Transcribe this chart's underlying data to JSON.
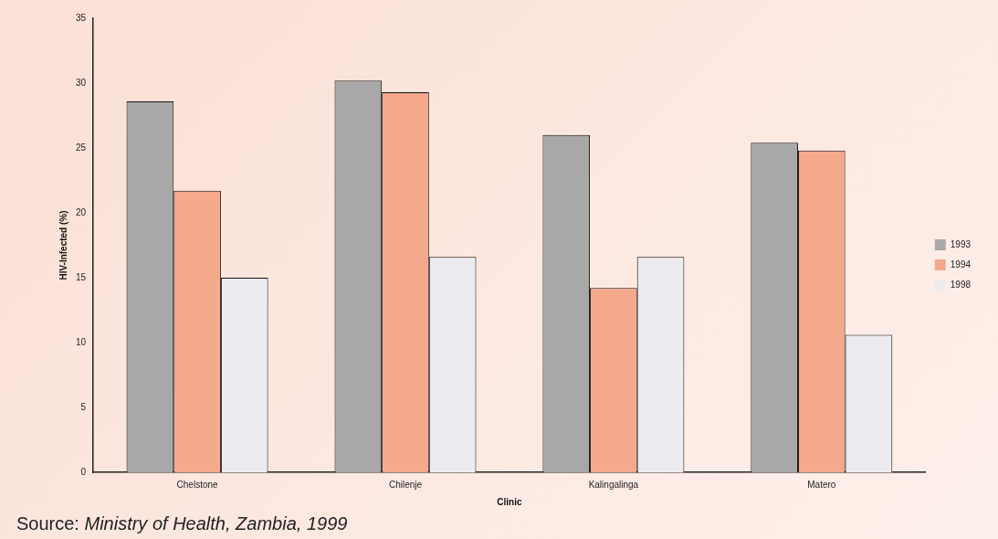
{
  "chart_data": {
    "type": "bar",
    "xlabel": "Clinic",
    "ylabel": "HIV-Infected (%)",
    "categories": [
      "Chelstone",
      "Chilenje",
      "Kalingalinga",
      "Matero"
    ],
    "series": [
      {
        "name": "1993",
        "color": "#a8a8a8",
        "values": [
          28.6,
          30.2,
          26.0,
          25.4
        ]
      },
      {
        "name": "1994",
        "color": "#f4a88c",
        "values": [
          21.7,
          29.3,
          14.2,
          24.8
        ]
      },
      {
        "name": "1998",
        "color": "#ececf0",
        "values": [
          15.0,
          16.6,
          16.6,
          10.6
        ]
      }
    ],
    "ylim": [
      0,
      35
    ],
    "yticks": [
      0,
      5,
      10,
      15,
      20,
      25,
      30,
      35
    ],
    "grid": false,
    "legend": "right",
    "annotations": [
      "Source: Ministry of Health, Zambia, 1999"
    ]
  }
}
